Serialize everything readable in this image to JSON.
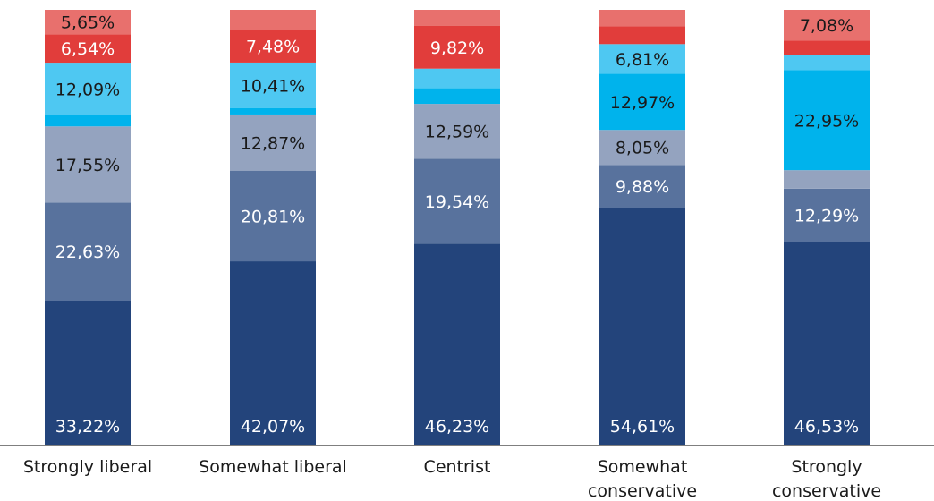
{
  "chart_data": {
    "type": "bar",
    "stacked": true,
    "categories": [
      [
        "Strongly liberal"
      ],
      [
        "Somewhat liberal"
      ],
      [
        "Centrist"
      ],
      [
        "Somewhat",
        "conservative"
      ],
      [
        "Strongly",
        "conservative"
      ]
    ],
    "series": [
      {
        "color": "#23447b",
        "label_color": "#ffffff",
        "values": [
          33.22,
          42.07,
          46.23,
          54.61,
          46.53
        ],
        "labels": [
          "33,22%",
          "42,07%",
          "46,23%",
          "54,61%",
          "46,53%"
        ]
      },
      {
        "color": "#58729d",
        "label_color": "#ffffff",
        "values": [
          22.63,
          20.81,
          19.54,
          9.88,
          12.29
        ],
        "labels": [
          "22,63%",
          "20,81%",
          "19,54%",
          "9,88%",
          "12,29%"
        ]
      },
      {
        "color": "#94a3bf",
        "label_color": "#1a1a1a",
        "values": [
          17.55,
          12.87,
          12.59,
          8.05,
          4.25
        ],
        "labels": [
          "17,55%",
          "12,87%",
          "12,59%",
          "8,05%",
          ""
        ]
      },
      {
        "color": "#00b3ec",
        "label_color": "#1a1a1a",
        "values": [
          2.6,
          1.5,
          3.6,
          12.97,
          22.95
        ],
        "labels": [
          "",
          "",
          "",
          "12,97%",
          "22,95%"
        ]
      },
      {
        "color": "#4ec8f2",
        "label_color": "#1a1a1a",
        "values": [
          12.09,
          10.41,
          4.5,
          6.81,
          3.5
        ],
        "labels": [
          "12,09%",
          "10,41%",
          "",
          "6,81%",
          ""
        ]
      },
      {
        "color": "#e13d3b",
        "label_color": "#ffffff",
        "values": [
          6.54,
          7.48,
          9.82,
          4.1,
          3.3
        ],
        "labels": [
          "6,54%",
          "7,48%",
          "9,82%",
          "",
          ""
        ]
      },
      {
        "color": "#e8706d",
        "label_color": "#1a1a1a",
        "values": [
          5.65,
          4.62,
          3.7,
          3.8,
          7.08
        ],
        "labels": [
          "5,65%",
          "",
          "",
          "",
          "7,08%"
        ]
      }
    ],
    "ylim": [
      0,
      100
    ],
    "grid": false,
    "legend": "none"
  }
}
